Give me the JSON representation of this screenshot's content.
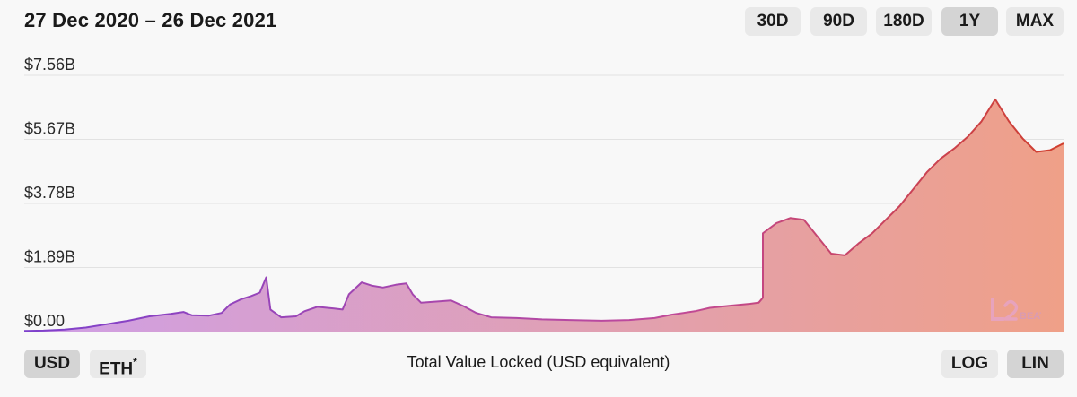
{
  "header": {
    "date_range": "27 Dec 2020 – 26 Dec 2021"
  },
  "range_buttons": [
    {
      "label": "30D",
      "active": false
    },
    {
      "label": "90D",
      "active": false
    },
    {
      "label": "180D",
      "active": false
    },
    {
      "label": "1Y",
      "active": true
    },
    {
      "label": "MAX",
      "active": false
    }
  ],
  "currency_buttons": [
    {
      "label": "USD",
      "active": true
    },
    {
      "label": "ETH",
      "sup": "*",
      "active": false
    }
  ],
  "scale_buttons": [
    {
      "label": "LOG",
      "active": false
    },
    {
      "label": "LIN",
      "active": true
    }
  ],
  "caption": "Total Value Locked (USD equivalent)",
  "logo": {
    "text": "L2BEAT",
    "alt_icon": "l2beat-logo-icon"
  },
  "colors": {
    "line_start": "#7e41cc",
    "line_end": "#d03e2c",
    "fill_start": "#cf9fe6",
    "fill_end": "#efa088",
    "grid": "#e2e2e2"
  },
  "chart_data": {
    "type": "area",
    "title": "",
    "xlabel": "",
    "ylabel": "Total Value Locked (USD equivalent)",
    "x_range": [
      "2020-12-27",
      "2021-12-26"
    ],
    "ylim": [
      0,
      7.56
    ],
    "y_unit": "billion USD",
    "yticks": [
      {
        "value": 0,
        "label": "$0.00"
      },
      {
        "value": 1.89,
        "label": "$1.89B"
      },
      {
        "value": 3.78,
        "label": "$3.78B"
      },
      {
        "value": 5.67,
        "label": "$5.67B"
      },
      {
        "value": 7.56,
        "label": "$7.56B"
      }
    ],
    "grid": true,
    "series": [
      {
        "points": [
          [
            "2020-12-27",
            0.02
          ],
          [
            "2021-01-05",
            0.03
          ],
          [
            "2021-01-15",
            0.06
          ],
          [
            "2021-01-25",
            0.12
          ],
          [
            "2021-02-04",
            0.22
          ],
          [
            "2021-02-14",
            0.32
          ],
          [
            "2021-02-24",
            0.45
          ],
          [
            "2021-03-06",
            0.52
          ],
          [
            "2021-03-12",
            0.58
          ],
          [
            "2021-03-16",
            0.48
          ],
          [
            "2021-03-24",
            0.47
          ],
          [
            "2021-03-30",
            0.55
          ],
          [
            "2021-04-03",
            0.8
          ],
          [
            "2021-04-08",
            0.95
          ],
          [
            "2021-04-13",
            1.05
          ],
          [
            "2021-04-17",
            1.15
          ],
          [
            "2021-04-20",
            1.6
          ],
          [
            "2021-04-22",
            0.65
          ],
          [
            "2021-04-27",
            0.42
          ],
          [
            "2021-05-04",
            0.45
          ],
          [
            "2021-05-08",
            0.6
          ],
          [
            "2021-05-14",
            0.73
          ],
          [
            "2021-05-22",
            0.68
          ],
          [
            "2021-05-26",
            0.65
          ],
          [
            "2021-05-29",
            1.1
          ],
          [
            "2021-06-04",
            1.45
          ],
          [
            "2021-06-09",
            1.35
          ],
          [
            "2021-06-14",
            1.3
          ],
          [
            "2021-06-20",
            1.38
          ],
          [
            "2021-06-25",
            1.42
          ],
          [
            "2021-06-28",
            1.1
          ],
          [
            "2021-07-02",
            0.85
          ],
          [
            "2021-07-12",
            0.9
          ],
          [
            "2021-07-16",
            0.92
          ],
          [
            "2021-07-22",
            0.75
          ],
          [
            "2021-07-28",
            0.55
          ],
          [
            "2021-08-04",
            0.42
          ],
          [
            "2021-08-16",
            0.4
          ],
          [
            "2021-08-28",
            0.36
          ],
          [
            "2021-09-10",
            0.34
          ],
          [
            "2021-09-25",
            0.32
          ],
          [
            "2021-10-08",
            0.34
          ],
          [
            "2021-10-20",
            0.4
          ],
          [
            "2021-10-28",
            0.5
          ],
          [
            "2021-11-08",
            0.6
          ],
          [
            "2021-11-15",
            0.7
          ],
          [
            "2021-11-24",
            0.76
          ],
          [
            "2021-12-04",
            0.82
          ],
          [
            "2021-12-08",
            0.85
          ],
          [
            "2021-12-10",
            1.0
          ],
          [
            "2021-12-11",
            2.9
          ],
          [
            "2021-12-14",
            3.2
          ],
          [
            "2021-12-17",
            3.35
          ],
          [
            "2021-12-19",
            3.3
          ],
          [
            "2021-12-20",
            2.8
          ],
          [
            "2021-12-21",
            2.3
          ],
          [
            "2021-12-22",
            2.25
          ],
          [
            "2021-12-23",
            2.6
          ],
          [
            "2021-12-23",
            2.9
          ],
          [
            "2021-12-24",
            3.3
          ],
          [
            "2021-12-24",
            3.7
          ],
          [
            "2021-12-25",
            4.2
          ],
          [
            "2021-12-25",
            4.7
          ],
          [
            "2021-12-25",
            5.1
          ],
          [
            "2021-12-25",
            5.4
          ],
          [
            "2021-12-25",
            5.75
          ],
          [
            "2021-12-26",
            6.2
          ],
          [
            "2021-12-26",
            6.85
          ],
          [
            "2021-12-26",
            6.2
          ],
          [
            "2021-12-26",
            5.7
          ],
          [
            "2021-12-26",
            5.3
          ],
          [
            "2021-12-26",
            5.35
          ],
          [
            "2021-12-26",
            5.55
          ]
        ]
      }
    ]
  }
}
